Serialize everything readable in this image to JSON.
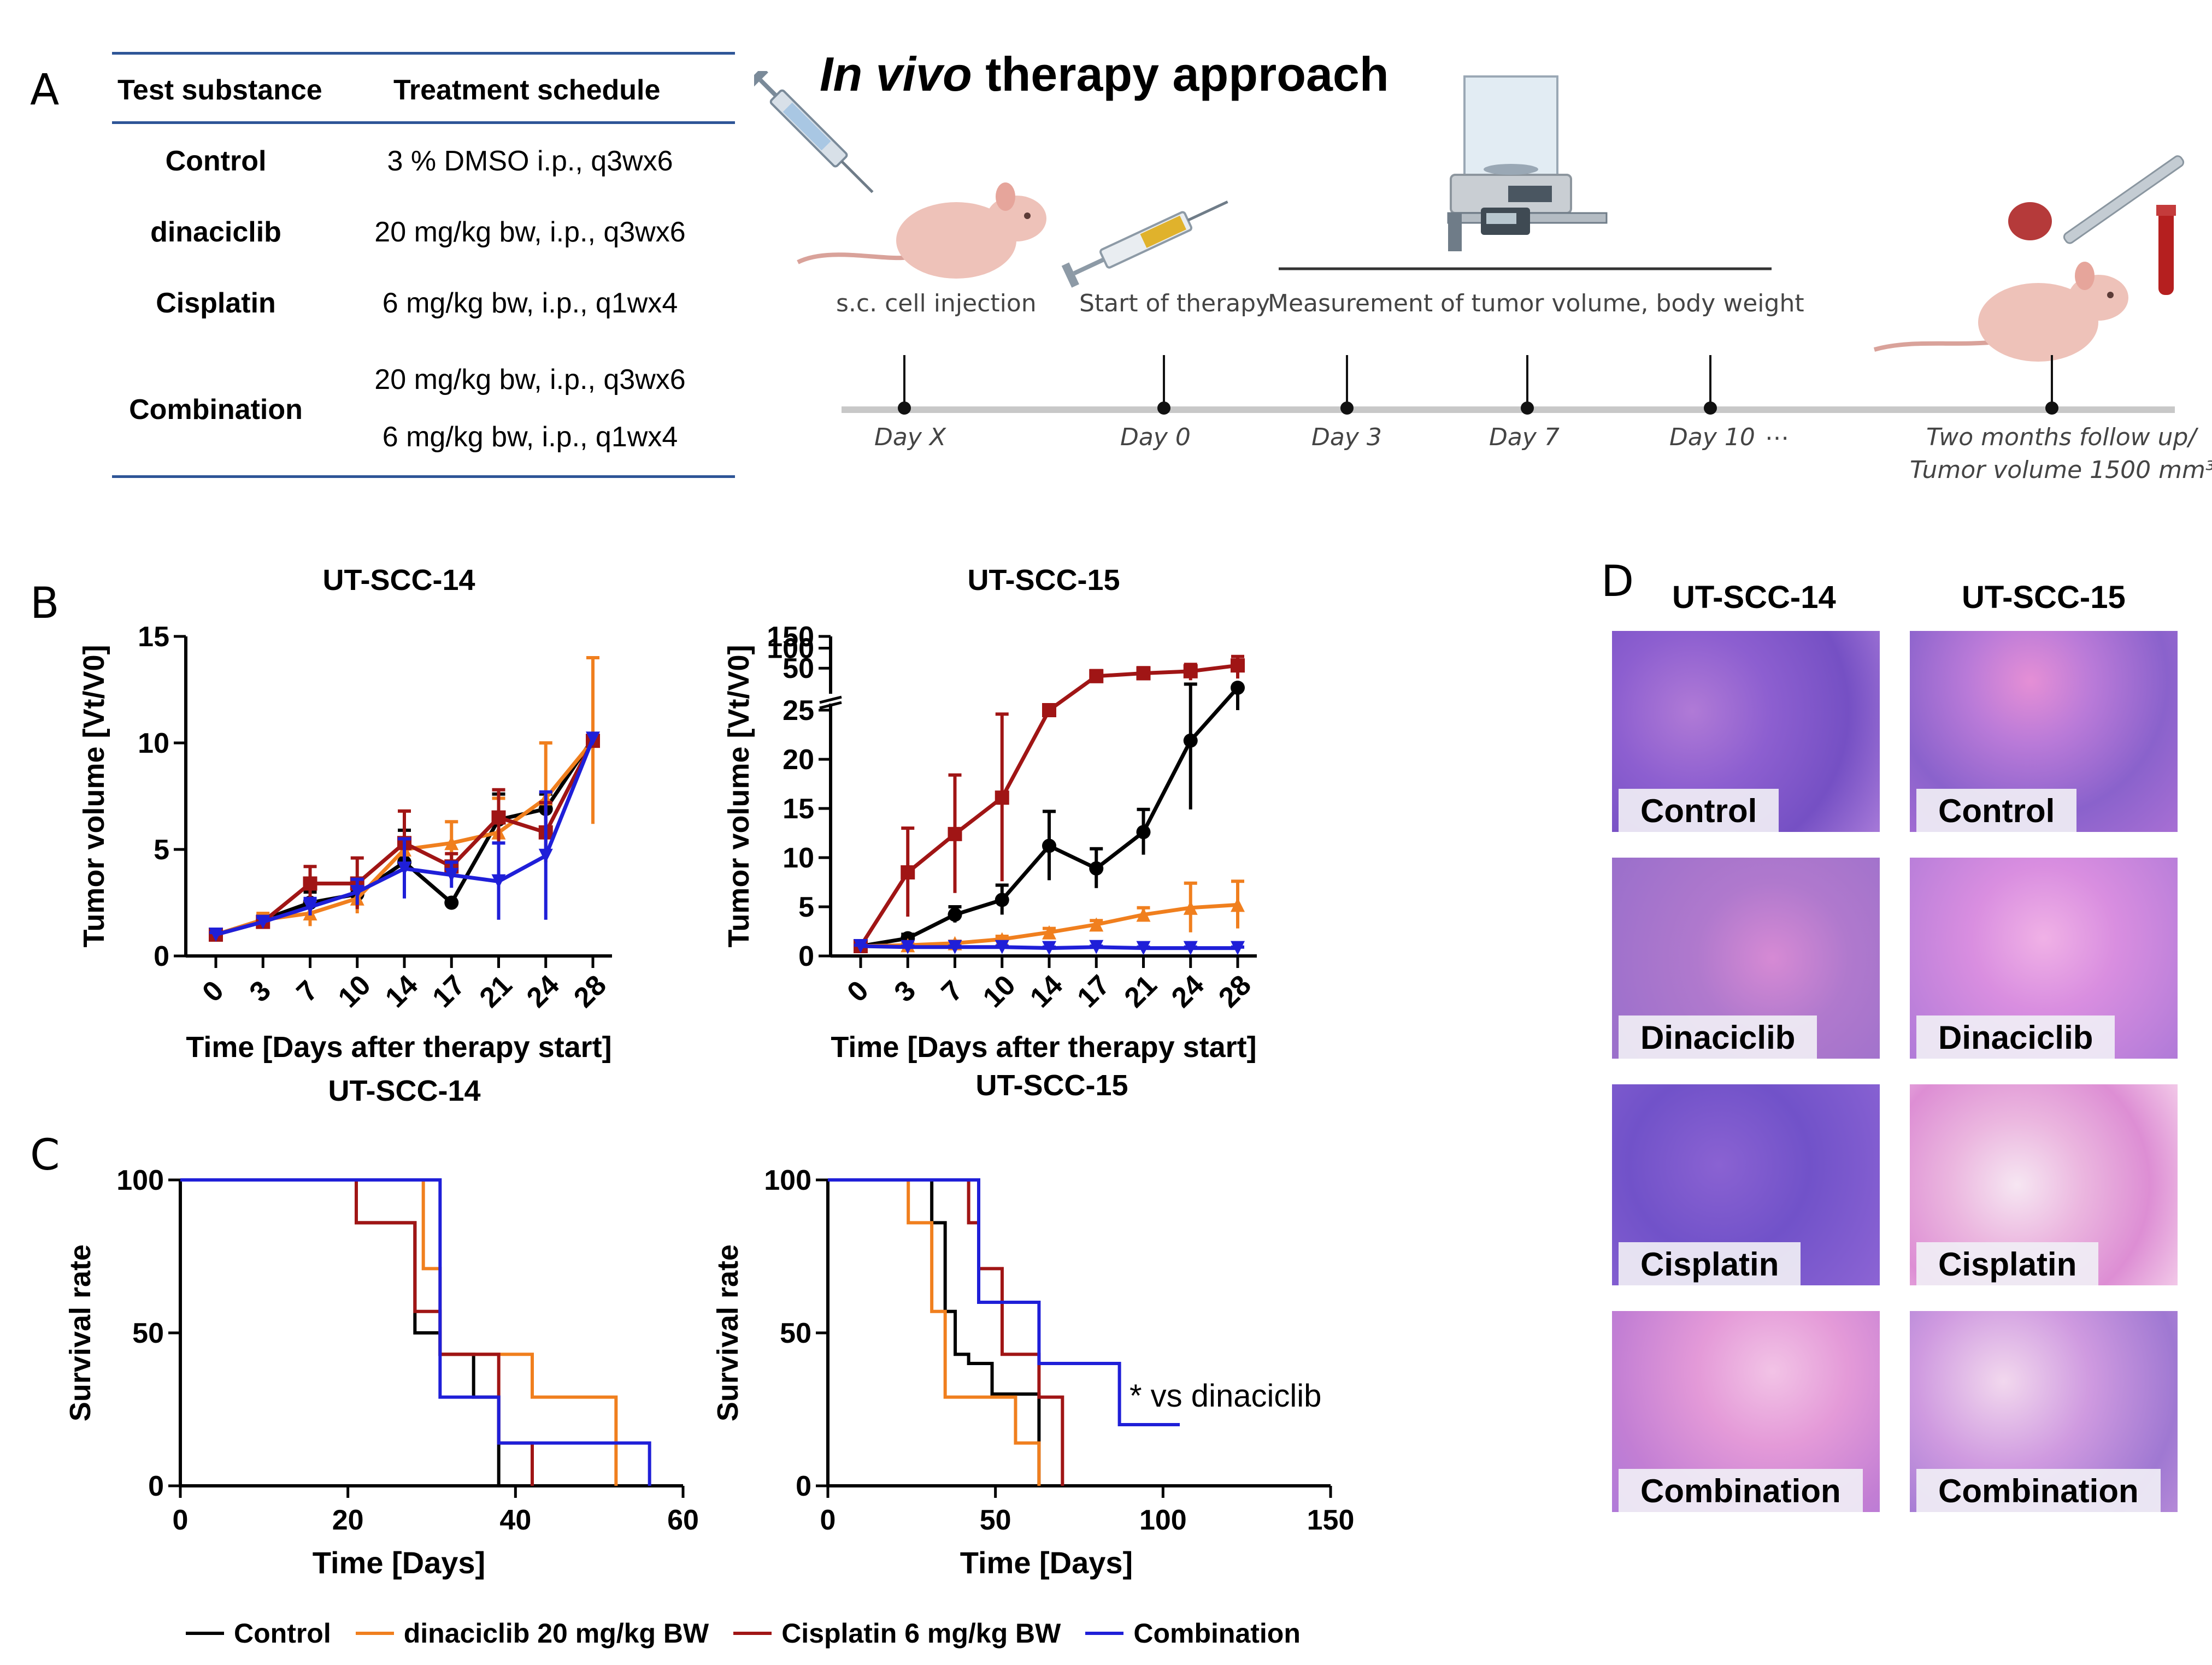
{
  "panel_labels": {
    "a": "A",
    "b": "B",
    "c": "C",
    "d": "D"
  },
  "table": {
    "headers": [
      "Test substance",
      "Treatment schedule"
    ],
    "rows": [
      {
        "substance": "Control",
        "schedule": [
          "3 % DMSO i.p., q3wx6"
        ]
      },
      {
        "substance": "dinaciclib",
        "schedule": [
          "20 mg/kg bw, i.p., q3wx6"
        ]
      },
      {
        "substance": "Cisplatin",
        "schedule": [
          "6 mg/kg bw, i.p., q1wx4"
        ]
      },
      {
        "substance": "Combination",
        "schedule": [
          "20 mg/kg bw, i.p., q3wx6",
          "6 mg/kg bw, i.p., q1wx4"
        ]
      }
    ],
    "line_color": "#2e5597"
  },
  "therapy": {
    "title_italic": "In vivo",
    "title_rest": " therapy approach",
    "steps": {
      "injection": "s.c. cell injection",
      "start": "Start of therapy",
      "measure": "Measurement of tumor volume, body weight"
    },
    "days": [
      "Day X",
      "Day 0",
      "Day 3",
      "Day 7",
      "Day 10"
    ],
    "ellipsis": "…",
    "end_line1": "Two months follow up/",
    "end_line2": "Tumor volume 1500  mm³"
  },
  "colors": {
    "control": "#000000",
    "dinaciclib": "#f07f1e",
    "cisplatin": "#a01515",
    "combination": "#1f1fd8"
  },
  "chart_data": [
    {
      "id": "b1",
      "type": "line",
      "title": "UT-SCC-14",
      "xlabel": "Time [Days after therapy start]",
      "ylabel": "Tumor volume [Vt/V0]",
      "x": [
        0,
        3,
        7,
        10,
        14,
        17,
        21,
        24,
        28
      ],
      "ylim": [
        0,
        15
      ],
      "yticks": [
        0,
        5,
        10,
        15
      ],
      "series": [
        {
          "name": "Control",
          "key": "control",
          "marker": "circle",
          "values": [
            1,
            1.7,
            2.5,
            2.9,
            4.4,
            2.5,
            6.4,
            6.9,
            10.2
          ],
          "err": [
            0.1,
            0.2,
            0.5,
            0.6,
            1.5,
            0,
            1.2,
            0.7,
            0
          ]
        },
        {
          "name": "dinaciclib",
          "key": "dinaciclib",
          "marker": "triangle",
          "values": [
            1,
            1.7,
            2.0,
            2.7,
            5.0,
            5.3,
            5.8,
            7.4,
            10.1
          ],
          "err": [
            0.1,
            0.3,
            0.6,
            0.7,
            1.8,
            1.0,
            1.6,
            2.6,
            3.9
          ]
        },
        {
          "name": "Cisplatin",
          "key": "cisplatin",
          "marker": "square",
          "values": [
            1,
            1.6,
            3.4,
            3.4,
            5.3,
            4.2,
            6.5,
            5.8,
            10.1
          ],
          "err": [
            0.1,
            0.2,
            0.8,
            1.2,
            1.5,
            0.6,
            1.3,
            1.4,
            0
          ]
        },
        {
          "name": "Combination",
          "key": "combination",
          "marker": "triangle-down",
          "values": [
            1,
            1.6,
            2.3,
            3.0,
            4.1,
            3.8,
            3.5,
            4.7,
            10.2
          ],
          "err": [
            0.1,
            0.2,
            0.4,
            0.6,
            1.4,
            0.6,
            1.8,
            3.0,
            0
          ]
        }
      ]
    },
    {
      "id": "b2",
      "type": "line",
      "title": "UT-SCC-15",
      "xlabel": "Time [Days after therapy start]",
      "ylabel": "Tumor volume [Vt/V0]",
      "x": [
        0,
        3,
        7,
        10,
        14,
        17,
        21,
        24,
        28
      ],
      "ylim": [
        0,
        150
      ],
      "broken_axis": {
        "lower": [
          0,
          25
        ],
        "upper": [
          25,
          150
        ]
      },
      "yticks": [
        0,
        5,
        10,
        15,
        20,
        25,
        50,
        100,
        150
      ],
      "series": [
        {
          "name": "Control",
          "key": "control",
          "marker": "circle",
          "values": [
            1,
            1.8,
            4.2,
            5.7,
            11.2,
            8.9,
            12.6,
            21.9,
            25.5
          ],
          "err": [
            0.1,
            0.4,
            0.8,
            1.5,
            3.5,
            2.0,
            2.3,
            7.0,
            0.5
          ]
        },
        {
          "name": "dinaciclib",
          "key": "dinaciclib",
          "marker": "triangle",
          "values": [
            1,
            1.1,
            1.3,
            1.7,
            2.4,
            3.2,
            4.2,
            4.9,
            5.2
          ],
          "err": [
            0.1,
            0.2,
            0.2,
            0.3,
            0.4,
            0.4,
            0.7,
            2.5,
            2.4
          ]
        },
        {
          "name": "Cisplatin",
          "key": "cisplatin",
          "marker": "square",
          "values": [
            1,
            8.5,
            12.4,
            16.1,
            25,
            38,
            42,
            45,
            55
          ],
          "err": [
            0.2,
            4.5,
            6.0,
            8.5,
            0,
            8,
            9,
            12,
            20
          ]
        },
        {
          "name": "Combination",
          "key": "combination",
          "marker": "triangle-down",
          "values": [
            1,
            0.9,
            0.9,
            0.9,
            0.8,
            0.9,
            0.8,
            0.8,
            0.8
          ],
          "err": [
            0.1,
            0.1,
            0.1,
            0.1,
            0.1,
            0.1,
            0.1,
            0.1,
            0.1
          ]
        }
      ]
    },
    {
      "id": "c1",
      "type": "line",
      "title": "UT-SCC-14",
      "xlabel": "Time [Days]",
      "ylabel": "Survival rate",
      "xlim": [
        0,
        60
      ],
      "xticks": [
        0,
        20,
        40,
        60
      ],
      "ylim": [
        0,
        100
      ],
      "yticks": [
        0,
        50,
        100
      ],
      "series": [
        {
          "name": "Control",
          "key": "control",
          "steps": [
            [
              0,
              100
            ],
            [
              21,
              100
            ],
            [
              21,
              86
            ],
            [
              24,
              86
            ],
            [
              24,
              86
            ],
            [
              28,
              86
            ],
            [
              28,
              50
            ],
            [
              31,
              50
            ],
            [
              31,
              43
            ],
            [
              35,
              43
            ],
            [
              35,
              29
            ],
            [
              38,
              29
            ],
            [
              38,
              0
            ],
            [
              38,
              0
            ]
          ]
        },
        {
          "name": "dinaciclib",
          "key": "dinaciclib",
          "steps": [
            [
              0,
              100
            ],
            [
              29,
              100
            ],
            [
              29,
              71
            ],
            [
              31,
              71
            ],
            [
              31,
              43
            ],
            [
              42,
              43
            ],
            [
              42,
              29
            ],
            [
              52,
              29
            ],
            [
              52,
              0
            ]
          ]
        },
        {
          "name": "Cisplatin",
          "key": "cisplatin",
          "steps": [
            [
              0,
              100
            ],
            [
              21,
              100
            ],
            [
              21,
              86
            ],
            [
              28,
              86
            ],
            [
              28,
              57
            ],
            [
              31,
              57
            ],
            [
              31,
              43
            ],
            [
              38,
              43
            ],
            [
              38,
              14
            ],
            [
              42,
              14
            ],
            [
              42,
              0
            ]
          ]
        },
        {
          "name": "Combination",
          "key": "combination",
          "steps": [
            [
              0,
              100
            ],
            [
              31,
              100
            ],
            [
              31,
              71
            ],
            [
              31,
              71
            ],
            [
              31,
              29
            ],
            [
              38,
              29
            ],
            [
              38,
              14
            ],
            [
              56,
              14
            ],
            [
              56,
              0
            ]
          ]
        }
      ]
    },
    {
      "id": "c2",
      "type": "line",
      "title": "UT-SCC-15",
      "xlabel": "Time [Days]",
      "ylabel": "Survival rate",
      "xlim": [
        0,
        150
      ],
      "xticks": [
        0,
        50,
        100,
        150
      ],
      "ylim": [
        0,
        100
      ],
      "yticks": [
        0,
        50,
        100
      ],
      "annotation": "* vs dinaciclib",
      "series": [
        {
          "name": "Control",
          "key": "control",
          "steps": [
            [
              0,
              100
            ],
            [
              31,
              100
            ],
            [
              31,
              86
            ],
            [
              35,
              86
            ],
            [
              35,
              57
            ],
            [
              38,
              57
            ],
            [
              38,
              43
            ],
            [
              42,
              43
            ],
            [
              42,
              40
            ],
            [
              49,
              40
            ],
            [
              49,
              30
            ],
            [
              63,
              30
            ],
            [
              63,
              0
            ]
          ]
        },
        {
          "name": "dinaciclib",
          "key": "dinaciclib",
          "steps": [
            [
              0,
              100
            ],
            [
              24,
              100
            ],
            [
              24,
              86
            ],
            [
              31,
              86
            ],
            [
              31,
              57
            ],
            [
              35,
              57
            ],
            [
              35,
              29
            ],
            [
              56,
              29
            ],
            [
              56,
              14
            ],
            [
              63,
              14
            ],
            [
              63,
              0
            ]
          ]
        },
        {
          "name": "Cisplatin",
          "key": "cisplatin",
          "steps": [
            [
              0,
              100
            ],
            [
              42,
              100
            ],
            [
              42,
              86
            ],
            [
              45,
              86
            ],
            [
              45,
              71
            ],
            [
              52,
              71
            ],
            [
              52,
              43
            ],
            [
              63,
              43
            ],
            [
              63,
              29
            ],
            [
              70,
              29
            ],
            [
              70,
              0
            ]
          ]
        },
        {
          "name": "Combination",
          "key": "combination",
          "steps": [
            [
              0,
              100
            ],
            [
              45,
              100
            ],
            [
              45,
              60
            ],
            [
              63,
              60
            ],
            [
              63,
              40
            ],
            [
              87,
              40
            ],
            [
              87,
              20
            ],
            [
              105,
              20
            ]
          ]
        }
      ]
    }
  ],
  "legend": [
    {
      "key": "control",
      "label": "Control"
    },
    {
      "key": "dinaciclib",
      "label": "dinaciclib 20 mg/kg BW"
    },
    {
      "key": "cisplatin",
      "label": "Cisplatin 6 mg/kg BW"
    },
    {
      "key": "combination",
      "label": "Combination"
    }
  ],
  "histology": {
    "columns": [
      "UT-SCC-14",
      "UT-SCC-15"
    ],
    "rows": [
      "Control",
      "Dinaciclib",
      "Cisplatin",
      "Combination"
    ]
  }
}
